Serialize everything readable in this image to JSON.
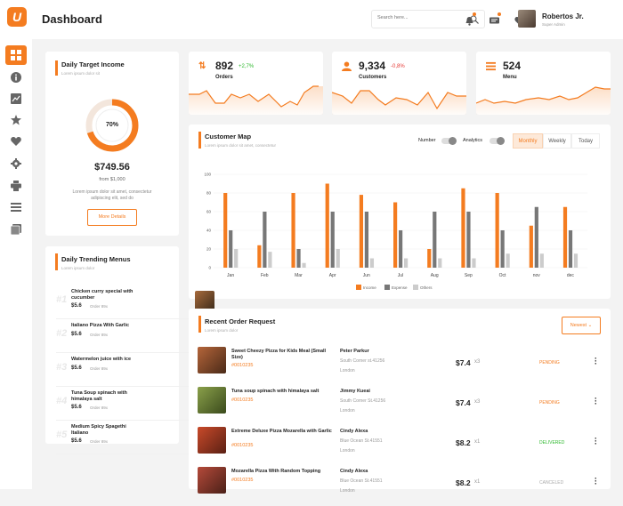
{
  "app": {
    "logo_letter": "U",
    "title": "Dashboard"
  },
  "header": {
    "search_placeholder": "Search here...",
    "user_name": "Robertos Jr.",
    "user_role": "Super Admin"
  },
  "daily_target": {
    "title": "Daily Target Income",
    "subtitle": "Lorem ipsum dolor sit",
    "percent": 70,
    "percent_label": "70%",
    "amount": "$749.56",
    "from": "from $1,000",
    "desc": "Lorem ipsum dolor sit amet, consectetur adipiscing elit, sed do",
    "button": "More Details"
  },
  "stats": [
    {
      "value": "892",
      "change": "+2,7%",
      "change_color": "#2eb82e",
      "label": "Orders",
      "icon": "orders-icon"
    },
    {
      "value": "9,334",
      "change": "-0,8%",
      "change_color": "#e53935",
      "label": "Customers",
      "icon": "customers-icon"
    },
    {
      "value": "524",
      "change": "",
      "change_color": "",
      "label": "Menu",
      "icon": "menu-icon"
    }
  ],
  "customer_map": {
    "title": "Customer Map",
    "subtitle": "Lorem ipsum dolor sit amet, consectetur",
    "toggle_number": "Number",
    "toggle_analytics": "Analytics",
    "tabs": [
      "Monthly",
      "Weekly",
      "Today"
    ]
  },
  "chart_data": {
    "type": "bar",
    "categories": [
      "Jan",
      "Feb",
      "Mar",
      "Apr",
      "Jun",
      "Jul",
      "Aug",
      "Sep",
      "Oct",
      "nov",
      "dec"
    ],
    "series": [
      {
        "name": "Income",
        "color": "#f47c20",
        "values": [
          80,
          24,
          80,
          90,
          78,
          70,
          20,
          85,
          80,
          45,
          65
        ]
      },
      {
        "name": "Expense",
        "color": "#777777",
        "values": [
          40,
          60,
          20,
          60,
          60,
          40,
          60,
          60,
          40,
          65,
          40
        ]
      },
      {
        "name": "Others",
        "color": "#cccccc",
        "values": [
          20,
          17,
          5,
          20,
          10,
          10,
          10,
          10,
          15,
          15,
          15
        ]
      }
    ],
    "yticks": [
      "0",
      "20",
      "40",
      "60",
      "80",
      "100"
    ],
    "ylim": [
      0,
      100
    ],
    "legend": "bottom"
  },
  "trending": {
    "title": "Daily Trending Menus",
    "subtitle": "Lorem ipsum dolor",
    "items": [
      {
        "rank": "#1",
        "name": "Chicken curry special with cucumber",
        "price": "$5.6",
        "orders": "Order 89x"
      },
      {
        "rank": "#2",
        "name": "Italiano Pizza With Garlic",
        "price": "$5.6",
        "orders": "Order 89x"
      },
      {
        "rank": "#3",
        "name": "Watermelon juice with ice",
        "price": "$5.6",
        "orders": "Order 89x"
      },
      {
        "rank": "#4",
        "name": "Tuna Soup spinach with himalaya salt",
        "price": "$5.6",
        "orders": "Order 89x"
      },
      {
        "rank": "#5",
        "name": "Medium Spicy Spagethi Italiano",
        "price": "$5.6",
        "orders": "Order 89x"
      }
    ]
  },
  "orders": {
    "title": "Recent Order Request",
    "subtitle": "Lorem ipsum dolor",
    "filter": "Newest",
    "items": [
      {
        "name": "Sweet Cheezy Pizza for Kids Meal (Small Size)",
        "id": "#0010235",
        "customer": "Peter Parkur",
        "address": "South Corner st.41256",
        "city": "London",
        "price": "$7.4",
        "qty": "x3",
        "status": "PENDING",
        "status_color": "#f47c20"
      },
      {
        "name": "Tuna soup spinach with himalaya salt",
        "id": "#0010235",
        "customer": "Jimmy Kueai",
        "address": "South Corner St.41256",
        "city": "London",
        "price": "$7.4",
        "qty": "x3",
        "status": "PENDING",
        "status_color": "#f47c20"
      },
      {
        "name": "Extreme Deluxe Pizza Mozarella with Garlic",
        "id": "#0010235",
        "customer": "Cindy Alexa",
        "address": "Blue Ocean St.41551",
        "city": "London",
        "price": "$8.2",
        "qty": "x1",
        "status": "DELIVERED",
        "status_color": "#2eb82e"
      },
      {
        "name": "Mozarella Pizza With Random Topping",
        "id": "#0010235",
        "customer": "Cindy Alexa",
        "address": "Blue Ocean St.41551",
        "city": "London",
        "price": "$8.2",
        "qty": "x1",
        "status": "CANCELED",
        "status_color": "#aaaaaa"
      }
    ]
  }
}
